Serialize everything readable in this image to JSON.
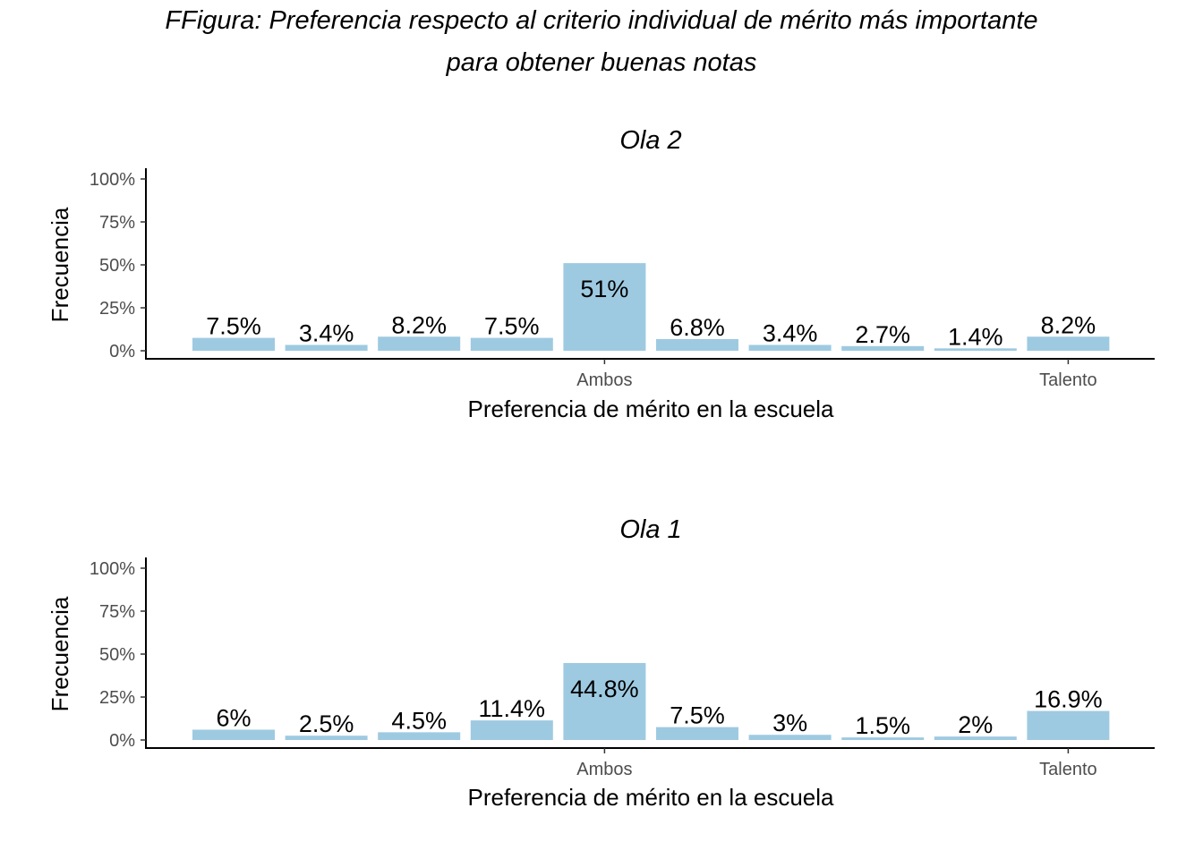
{
  "figure": {
    "title_line1": "FFigura: Preferencia respecto al criterio individual de mérito más importante",
    "title_line2": "para obtener buenas notas"
  },
  "colors": {
    "bar": "#9ecae1",
    "axis": "#000000",
    "tick_text": "#4d4d4d"
  },
  "chart_data": [
    {
      "type": "bar",
      "title": "Ola 2",
      "xlabel": "Preferencia de mérito en la escuela",
      "ylabel": "Frecuencia",
      "ylim": [
        0,
        100
      ],
      "yticks": [
        0,
        25,
        50,
        75,
        100
      ],
      "ytick_labels": [
        "0%",
        "25%",
        "50%",
        "75%",
        "100%"
      ],
      "n_categories": 10,
      "x_tick_labels": [
        {
          "index": 4,
          "label": "Ambos"
        },
        {
          "index": 9,
          "label": "Talento"
        }
      ],
      "values": [
        7.5,
        3.4,
        8.2,
        7.5,
        51,
        6.8,
        3.4,
        2.7,
        1.4,
        8.2
      ],
      "labels": [
        "7.5%",
        "3.4%",
        "8.2%",
        "7.5%",
        "51%",
        "6.8%",
        "3.4%",
        "2.7%",
        "1.4%",
        "8.2%"
      ],
      "grid": false
    },
    {
      "type": "bar",
      "title": "Ola 1",
      "xlabel": "Preferencia de mérito en la escuela",
      "ylabel": "Frecuencia",
      "ylim": [
        0,
        100
      ],
      "yticks": [
        0,
        25,
        50,
        75,
        100
      ],
      "ytick_labels": [
        "0%",
        "25%",
        "50%",
        "75%",
        "100%"
      ],
      "n_categories": 10,
      "x_tick_labels": [
        {
          "index": 4,
          "label": "Ambos"
        },
        {
          "index": 9,
          "label": "Talento"
        }
      ],
      "values": [
        6,
        2.5,
        4.5,
        11.4,
        44.8,
        7.5,
        3,
        1.5,
        2,
        16.9
      ],
      "labels": [
        "6%",
        "2.5%",
        "4.5%",
        "11.4%",
        "44.8%",
        "7.5%",
        "3%",
        "1.5%",
        "2%",
        "16.9%"
      ],
      "grid": false
    }
  ]
}
